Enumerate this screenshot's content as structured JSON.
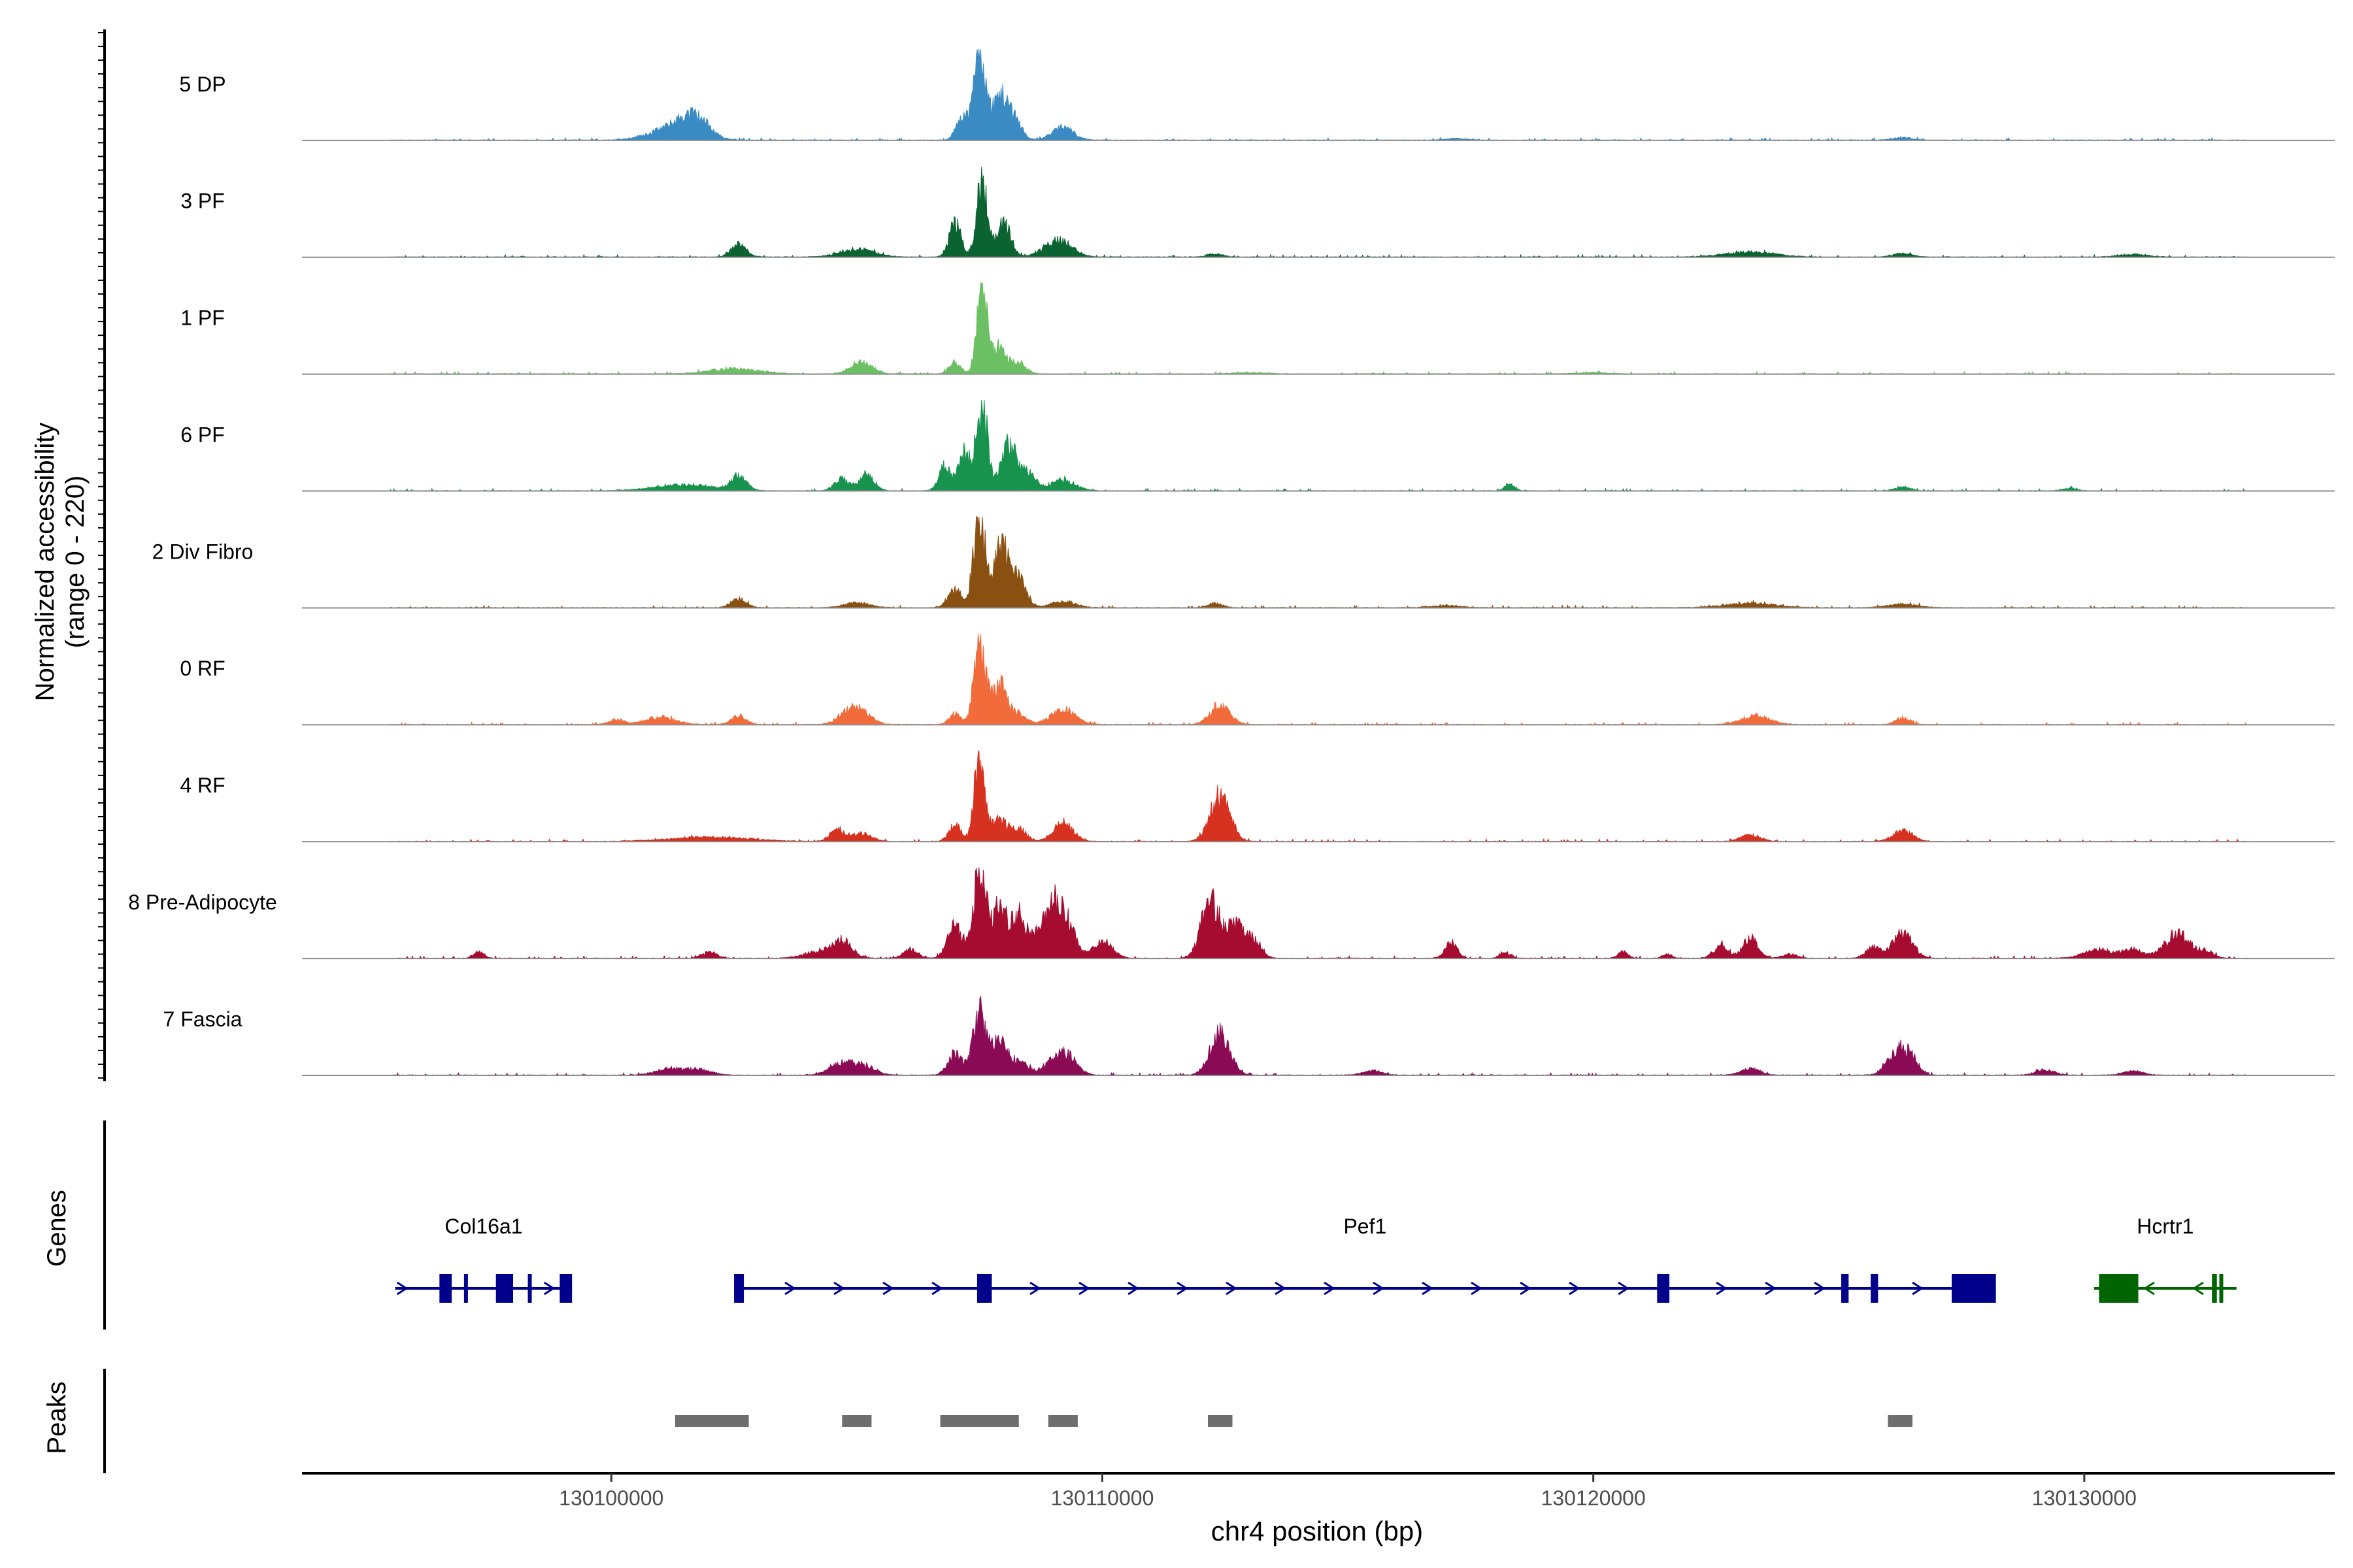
{
  "chart_data": {
    "type": "area",
    "title": "",
    "ylabel_line1": "Normalized accessibility",
    "ylabel_line2": "(range 0 - 220)",
    "ylim": [
      0,
      220
    ],
    "xlabel": "chr4 position (bp)",
    "xlim": [
      130093700,
      130135100
    ],
    "x_ticks": [
      130100000,
      130110000,
      130120000,
      130130000
    ],
    "x_tick_labels": [
      "130100000",
      "130110000",
      "130120000",
      "130130000"
    ],
    "tracks": [
      {
        "name": "5 DP",
        "color": "#3a8bc4",
        "peaks": [
          [
            130101200,
            25,
            450
          ],
          [
            130101600,
            30,
            300
          ],
          [
            130101800,
            22,
            250
          ],
          [
            130107500,
            220,
            110
          ],
          [
            130107150,
            60,
            120
          ],
          [
            130107900,
            100,
            160
          ],
          [
            130108200,
            50,
            150
          ],
          [
            130109200,
            30,
            220
          ],
          [
            130117200,
            4,
            200
          ],
          [
            130126300,
            6,
            200
          ]
        ]
      },
      {
        "name": "3 PF",
        "color": "#0a6331",
        "peaks": [
          [
            130102600,
            30,
            150
          ],
          [
            130105000,
            18,
            350
          ],
          [
            130107000,
            80,
            120
          ],
          [
            130107550,
            180,
            110
          ],
          [
            130108000,
            80,
            140
          ],
          [
            130109100,
            40,
            280
          ],
          [
            130112300,
            8,
            150
          ],
          [
            130123200,
            12,
            500
          ],
          [
            130126300,
            8,
            200
          ],
          [
            130131000,
            6,
            300
          ]
        ]
      },
      {
        "name": "1 PF",
        "color": "#6cc064",
        "peaks": [
          [
            130102500,
            12,
            500
          ],
          [
            130105100,
            28,
            220
          ],
          [
            130107000,
            28,
            120
          ],
          [
            130107550,
            220,
            100
          ],
          [
            130107900,
            70,
            140
          ],
          [
            130108300,
            25,
            150
          ],
          [
            130113000,
            3,
            300
          ],
          [
            130120000,
            3,
            300
          ]
        ]
      },
      {
        "name": "6 PF",
        "color": "#18934d",
        "peaks": [
          [
            130101500,
            14,
            600
          ],
          [
            130102600,
            35,
            150
          ],
          [
            130104700,
            28,
            150
          ],
          [
            130105200,
            40,
            150
          ],
          [
            130106800,
            60,
            120
          ],
          [
            130107200,
            90,
            120
          ],
          [
            130107550,
            210,
            110
          ],
          [
            130108100,
            110,
            160
          ],
          [
            130108500,
            40,
            150
          ],
          [
            130109200,
            25,
            250
          ],
          [
            130118300,
            15,
            100
          ],
          [
            130126300,
            10,
            150
          ],
          [
            130129700,
            6,
            150
          ]
        ]
      },
      {
        "name": "2 Div Fibro",
        "color": "#8a5011",
        "peaks": [
          [
            130102600,
            22,
            150
          ],
          [
            130105000,
            12,
            250
          ],
          [
            130107000,
            40,
            140
          ],
          [
            130107500,
            220,
            120
          ],
          [
            130107950,
            150,
            140
          ],
          [
            130108300,
            70,
            150
          ],
          [
            130109200,
            15,
            250
          ],
          [
            130112300,
            10,
            150
          ],
          [
            130117000,
            5,
            300
          ],
          [
            130123200,
            10,
            500
          ],
          [
            130126300,
            8,
            300
          ]
        ]
      },
      {
        "name": "0 RF",
        "color": "#f16b3b",
        "peaks": [
          [
            130100100,
            12,
            150
          ],
          [
            130101000,
            18,
            300
          ],
          [
            130102600,
            20,
            150
          ],
          [
            130104800,
            25,
            200
          ],
          [
            130105100,
            30,
            200
          ],
          [
            130107000,
            25,
            120
          ],
          [
            130107500,
            210,
            110
          ],
          [
            130107900,
            100,
            150
          ],
          [
            130108300,
            25,
            150
          ],
          [
            130109200,
            35,
            250
          ],
          [
            130112400,
            45,
            200
          ],
          [
            130123300,
            20,
            300
          ],
          [
            130126300,
            15,
            150
          ]
        ]
      },
      {
        "name": "4 RF",
        "color": "#d7311f",
        "peaks": [
          [
            130102000,
            10,
            800
          ],
          [
            130104600,
            25,
            150
          ],
          [
            130105100,
            18,
            200
          ],
          [
            130107000,
            40,
            120
          ],
          [
            130107500,
            220,
            100
          ],
          [
            130107900,
            55,
            150
          ],
          [
            130108300,
            30,
            150
          ],
          [
            130109200,
            45,
            200
          ],
          [
            130112400,
            110,
            200
          ],
          [
            130123200,
            15,
            200
          ],
          [
            130126300,
            25,
            200
          ]
        ]
      },
      {
        "name": "8 Pre-Adipocyte",
        "color": "#a50c30",
        "peaks": [
          [
            130097300,
            15,
            100
          ],
          [
            130102000,
            15,
            150
          ],
          [
            130104200,
            15,
            300
          ],
          [
            130104700,
            40,
            200
          ],
          [
            130106100,
            20,
            150
          ],
          [
            130107000,
            80,
            150
          ],
          [
            130107500,
            200,
            130
          ],
          [
            130107900,
            120,
            150
          ],
          [
            130108300,
            100,
            150
          ],
          [
            130108700,
            50,
            150
          ],
          [
            130109000,
            120,
            150
          ],
          [
            130109300,
            80,
            150
          ],
          [
            130110000,
            40,
            200
          ],
          [
            130112200,
            140,
            180
          ],
          [
            130112700,
            80,
            180
          ],
          [
            130113100,
            40,
            150
          ],
          [
            130117100,
            40,
            120
          ],
          [
            130118200,
            15,
            100
          ],
          [
            130120600,
            15,
            100
          ],
          [
            130121500,
            10,
            100
          ],
          [
            130122600,
            30,
            150
          ],
          [
            130123200,
            50,
            150
          ],
          [
            130124000,
            10,
            150
          ],
          [
            130125700,
            25,
            150
          ],
          [
            130126300,
            60,
            200
          ],
          [
            130130300,
            20,
            300
          ],
          [
            130131000,
            20,
            200
          ],
          [
            130131900,
            60,
            250
          ],
          [
            130132500,
            15,
            150
          ]
        ]
      },
      {
        "name": "7 Fascia",
        "color": "#8b0a55",
        "peaks": [
          [
            130101200,
            15,
            300
          ],
          [
            130101800,
            12,
            250
          ],
          [
            130104700,
            30,
            250
          ],
          [
            130105200,
            20,
            200
          ],
          [
            130107000,
            50,
            150
          ],
          [
            130107500,
            150,
            130
          ],
          [
            130107900,
            80,
            150
          ],
          [
            130108300,
            30,
            200
          ],
          [
            130109000,
            30,
            200
          ],
          [
            130109300,
            40,
            200
          ],
          [
            130112400,
            100,
            200
          ],
          [
            130115500,
            10,
            200
          ],
          [
            130123200,
            15,
            200
          ],
          [
            130126200,
            60,
            200
          ],
          [
            130126500,
            30,
            150
          ],
          [
            130129200,
            12,
            200
          ],
          [
            130131000,
            10,
            200
          ]
        ]
      }
    ],
    "genes": [
      {
        "name": "Col16a1",
        "color": "#00008b",
        "strand": "+",
        "start": 130095600,
        "end": 130099200,
        "exons": [
          [
            130096500,
            130096750
          ],
          [
            130097000,
            130097050
          ],
          [
            130097650,
            130098000
          ],
          [
            130098300,
            130098350
          ],
          [
            130098950,
            130099200
          ]
        ]
      },
      {
        "name": "Pef1",
        "color": "#00008b",
        "strand": "+",
        "start": 130102500,
        "end": 130128200,
        "exons": [
          [
            130102500,
            130102700
          ],
          [
            130107450,
            130107750
          ],
          [
            130121300,
            130121550
          ],
          [
            130125050,
            130125200
          ],
          [
            130125650,
            130125800
          ],
          [
            130127300,
            130128200
          ]
        ]
      },
      {
        "name": "Hcrtr1",
        "color": "#006400",
        "strand": "-",
        "start": 130130200,
        "end": 130133100,
        "exons": [
          [
            130130300,
            130131100
          ],
          [
            130132600,
            130132700
          ],
          [
            130132750,
            130132800
          ]
        ]
      }
    ],
    "peak_regions": [
      [
        130101300,
        130102800
      ],
      [
        130104700,
        130105300
      ],
      [
        130106700,
        130108300
      ],
      [
        130108900,
        130109500
      ],
      [
        130112150,
        130112650
      ],
      [
        130126000,
        130126500
      ]
    ],
    "panel_labels": {
      "genes": "Genes",
      "peaks": "Peaks"
    },
    "colors": {
      "baseline": "#8c8c8c",
      "peak_region": "#6e6e6e",
      "axis": "#000000"
    }
  }
}
